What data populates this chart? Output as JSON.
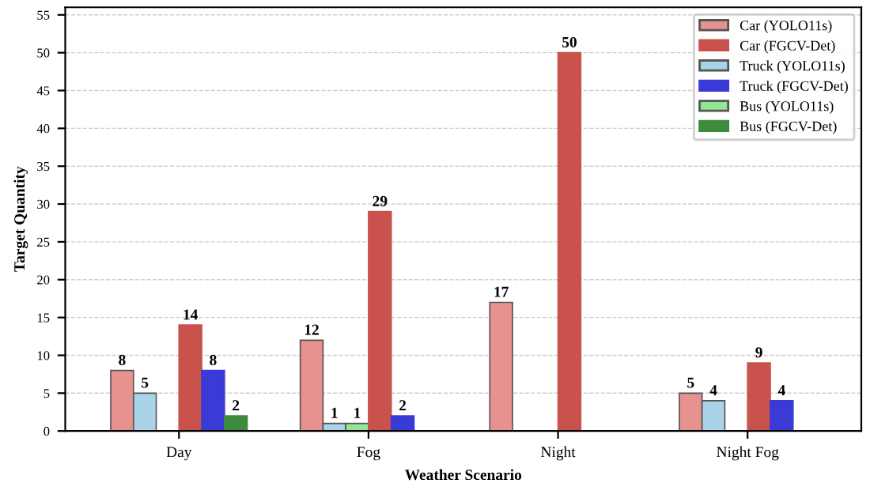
{
  "chart_data": {
    "type": "bar",
    "xlabel": "Weather Scenario",
    "ylabel": "Target Quantity",
    "categories": [
      "Day",
      "Fog",
      "Night",
      "Night Fog"
    ],
    "series": [
      {
        "name": "Car (YOLO11s)",
        "color": "#e8928f",
        "values": [
          8,
          12,
          17,
          5
        ]
      },
      {
        "name": "Truck (YOLO11s)",
        "color": "#a9d3e6",
        "values": [
          5,
          1,
          null,
          4
        ]
      },
      {
        "name": "Bus (YOLO11s)",
        "color": "#93e693",
        "values": [
          null,
          1,
          null,
          null
        ]
      },
      {
        "name": "Car (FGCV-Det)",
        "color": "#c9524c",
        "values": [
          14,
          29,
          50,
          9
        ]
      },
      {
        "name": "Truck (FGCV-Det)",
        "color": "#3a3ad6",
        "values": [
          8,
          2,
          null,
          4
        ]
      },
      {
        "name": "Bus (FGCV-Det)",
        "color": "#3d8b3d",
        "values": [
          2,
          null,
          null,
          null
        ]
      }
    ],
    "ylim": [
      0,
      56
    ],
    "yticks": [
      0,
      5,
      10,
      15,
      20,
      25,
      30,
      35,
      40,
      45,
      50,
      55
    ],
    "grid": "y",
    "legend": "top right",
    "data_labels": true
  }
}
